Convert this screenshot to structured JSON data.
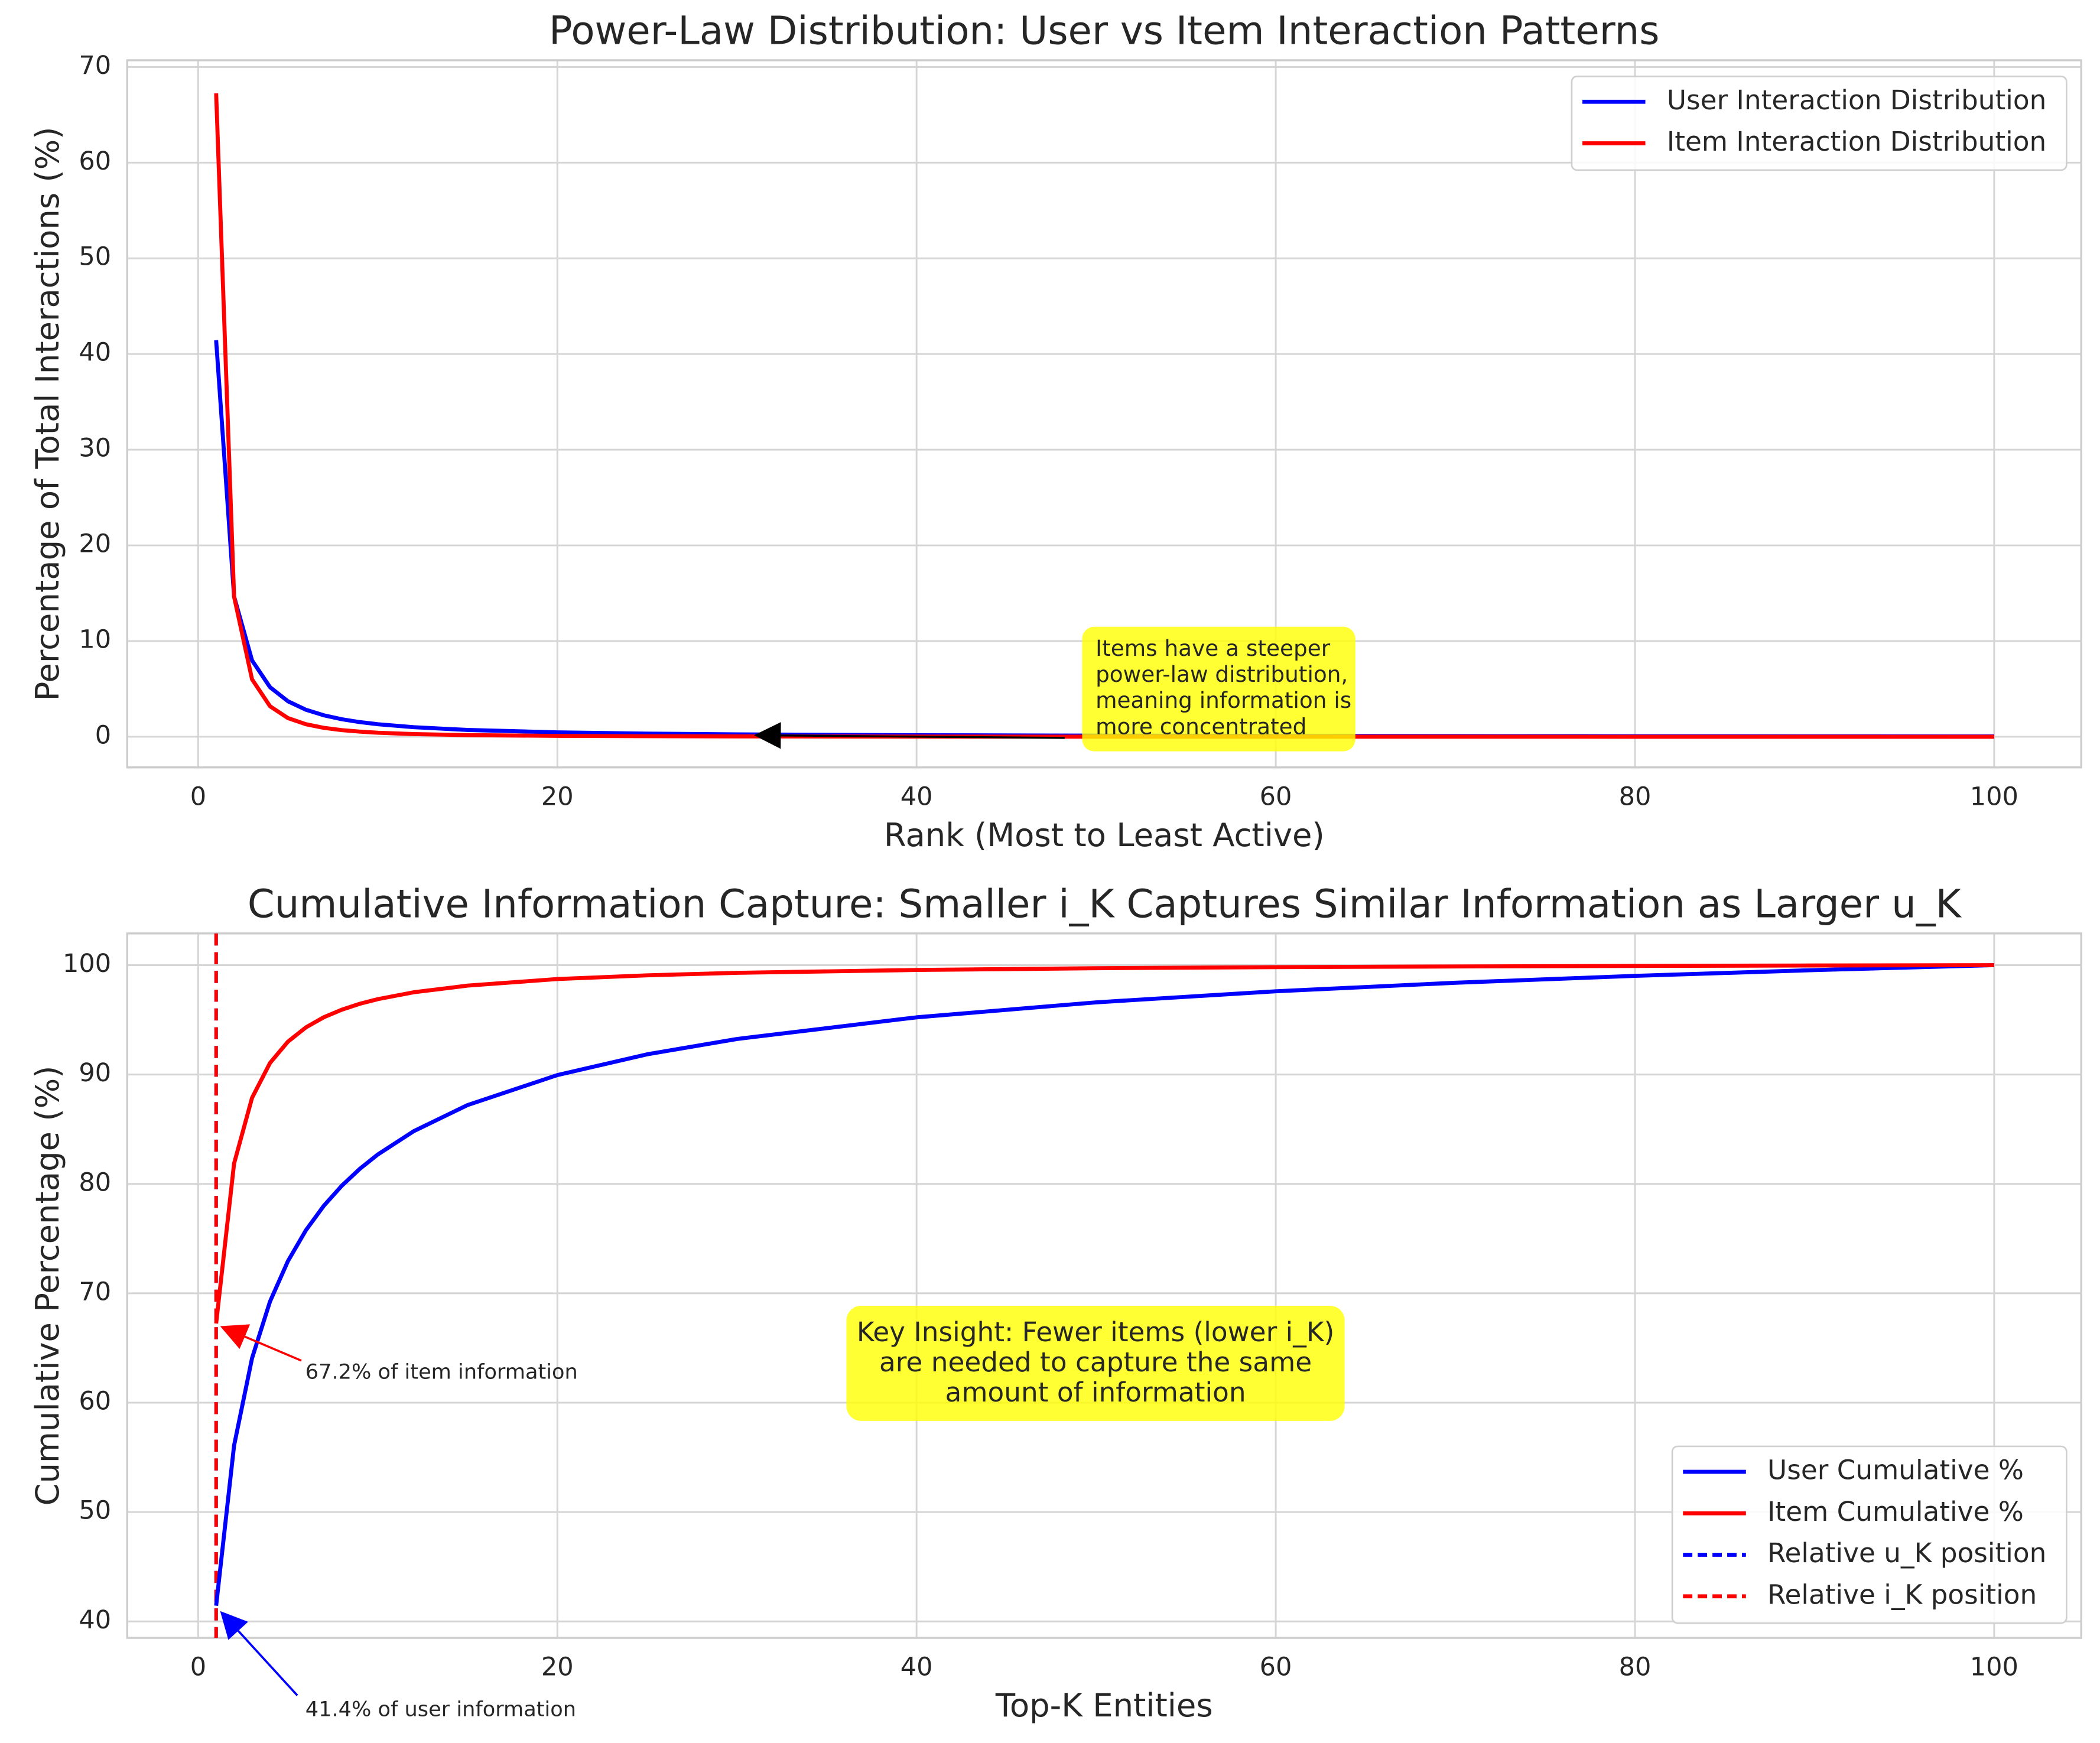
{
  "chart_data": [
    {
      "type": "line",
      "title": "Power-Law Distribution: User vs Item Interaction Patterns",
      "xlabel": "Rank (Most to Least Active)",
      "ylabel": "Percentage of Total Interactions (%)",
      "x": [
        1,
        2,
        3,
        4,
        5,
        6,
        7,
        8,
        9,
        10,
        12,
        15,
        20,
        25,
        30,
        40,
        50,
        60,
        70,
        80,
        90,
        100
      ],
      "series": [
        {
          "name": "User Interaction Distribution",
          "color": "#0000ff",
          "values": [
            41.44,
            14.65,
            7.98,
            5.18,
            3.71,
            2.82,
            2.24,
            1.83,
            1.53,
            1.31,
            1.0,
            0.71,
            0.46,
            0.33,
            0.25,
            0.16,
            0.12,
            0.09,
            0.07,
            0.06,
            0.05,
            0.04
          ]
        },
        {
          "name": "Item Interaction Distribution",
          "color": "#ff0000",
          "values": [
            67.24,
            14.63,
            6.0,
            3.19,
            1.95,
            1.31,
            0.93,
            0.69,
            0.54,
            0.42,
            0.28,
            0.17,
            0.09,
            0.06,
            0.04,
            0.02,
            0.01,
            0.01,
            0.01,
            0.0,
            0.0,
            0.0
          ]
        }
      ],
      "xlim": [
        -3.95,
        104.85
      ],
      "ylim": [
        -3.2,
        70.7
      ],
      "xticks": [
        0,
        20,
        40,
        60,
        80,
        100
      ],
      "yticks": [
        0,
        10,
        20,
        30,
        40,
        50,
        60,
        70
      ],
      "grid": true,
      "legend_loc": "upper right",
      "annotation": [
        "Items have a steeper",
        "power-law distribution,",
        "meaning information is",
        "more concentrated"
      ]
    },
    {
      "type": "line",
      "title": "Cumulative Information Capture: Smaller i_K Captures Similar Information as Larger u_K",
      "xlabel": "Top-K Entities",
      "ylabel": "Cumulative Percentage (%)",
      "x": [
        1,
        2,
        3,
        4,
        5,
        6,
        7,
        8,
        9,
        10,
        12,
        15,
        20,
        25,
        30,
        40,
        50,
        60,
        70,
        80,
        90,
        100
      ],
      "series": [
        {
          "name": "User Cumulative %",
          "color": "#0000ff",
          "values": [
            41.44,
            56.09,
            64.07,
            69.25,
            72.95,
            75.77,
            78.01,
            79.84,
            81.38,
            82.69,
            84.82,
            87.21,
            89.95,
            91.85,
            93.25,
            95.23,
            96.6,
            97.61,
            98.39,
            99.02,
            99.55,
            100.0
          ]
        },
        {
          "name": "Item Cumulative %",
          "color": "#ff0000",
          "values": [
            67.24,
            81.87,
            87.87,
            91.06,
            93.01,
            94.31,
            95.24,
            95.93,
            96.47,
            96.89,
            97.52,
            98.13,
            98.73,
            99.07,
            99.3,
            99.56,
            99.72,
            99.82,
            99.88,
            99.93,
            99.97,
            100.0
          ]
        }
      ],
      "vlines": [
        {
          "name": "Relative u_K position",
          "color": "#0000ff",
          "x": 1
        },
        {
          "name": "Relative i_K position",
          "color": "#ff0000",
          "x": 1
        }
      ],
      "xlim": [
        -3.95,
        104.85
      ],
      "ylim": [
        38.5,
        102.9
      ],
      "xticks": [
        0,
        20,
        40,
        60,
        80,
        100
      ],
      "yticks": [
        40,
        50,
        60,
        70,
        80,
        90,
        100
      ],
      "grid": true,
      "legend_loc": "lower right",
      "annotations": {
        "item": "67.2% of item information",
        "user": "41.4% of user information",
        "insight": [
          "Key Insight: Fewer items (lower i_K)",
          "are needed to capture the same",
          "amount of information"
        ]
      }
    }
  ]
}
